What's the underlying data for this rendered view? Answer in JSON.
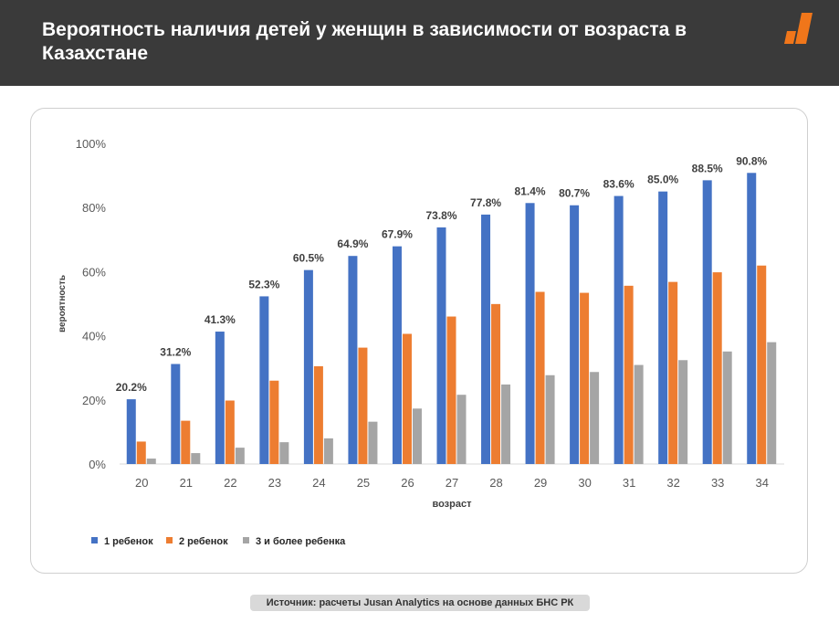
{
  "header": {
    "title": "Вероятность наличия детей у женщин в зависимости от возраста в Казахстане"
  },
  "source": "Источник: расчеты Jusan Analytics на основе данных БНС РК",
  "colors": {
    "header_bg": "#3a3a3a",
    "accent": "#f0761a",
    "series_1": "#4472c4",
    "series_2": "#ed7d31",
    "series_3": "#a5a5a5"
  },
  "chart_data": {
    "type": "bar",
    "categories": [
      "20",
      "21",
      "22",
      "23",
      "24",
      "25",
      "26",
      "27",
      "28",
      "29",
      "30",
      "31",
      "32",
      "33",
      "34"
    ],
    "series": [
      {
        "name": "1 ребенок",
        "values": [
          20.2,
          31.2,
          41.3,
          52.3,
          60.5,
          64.9,
          67.9,
          73.8,
          77.8,
          81.4,
          80.7,
          83.6,
          85.0,
          88.5,
          90.8
        ],
        "labels": [
          "20.2%",
          "31.2%",
          "41.3%",
          "52.3%",
          "60.5%",
          "64.9%",
          "67.9%",
          "73.8%",
          "77.8%",
          "81.4%",
          "80.7%",
          "83.6%",
          "85.0%",
          "88.5%",
          "90.8%"
        ]
      },
      {
        "name": "2 ребенок",
        "values": [
          7,
          13.5,
          19.8,
          26,
          30.5,
          36.3,
          40.6,
          46,
          49.9,
          53.7,
          53.4,
          55.6,
          56.8,
          59.8,
          61.9
        ]
      },
      {
        "name": "3 и более ребенка",
        "values": [
          1.7,
          3.4,
          5.1,
          6.8,
          8,
          13.2,
          17.3,
          21.6,
          24.8,
          27.7,
          28.7,
          30.9,
          32.4,
          35.1,
          38
        ]
      }
    ],
    "yticks": [
      "0%",
      "20%",
      "40%",
      "60%",
      "80%",
      "100%"
    ],
    "ylim": [
      0,
      100
    ],
    "xlabel": "возраст",
    "ylabel": "вероятность",
    "legend_position": "bottom-left",
    "grid": false
  }
}
